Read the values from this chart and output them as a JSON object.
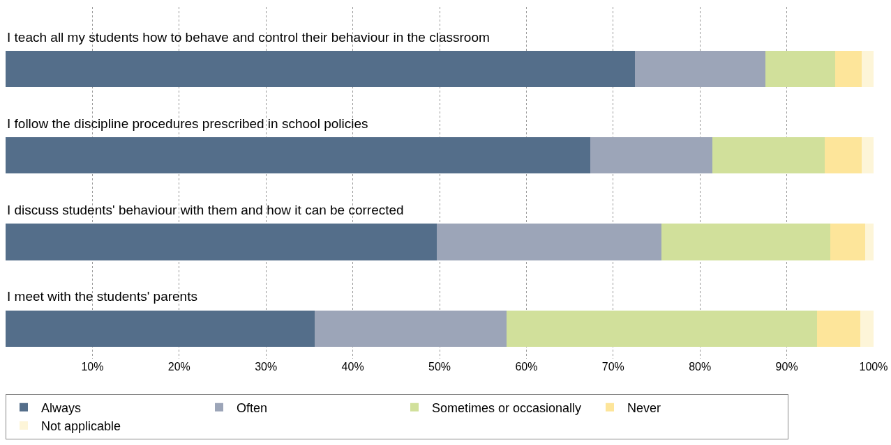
{
  "chart_data": {
    "type": "bar",
    "orientation": "horizontal",
    "stacked": true,
    "categories": [
      "I teach all my students how to behave and control their behaviour in the classroom",
      "I follow the discipline procedures prescribed in school policies",
      "I discuss students' behaviour with them and how it can be corrected",
      "I meet with the students' parents"
    ],
    "series": [
      {
        "name": "Always",
        "color": "#546e8a",
        "values": [
          72.5,
          67.4,
          49.7,
          35.6
        ]
      },
      {
        "name": "Often",
        "color": "#9ca5b8",
        "values": [
          15,
          14,
          25.9,
          22.1
        ]
      },
      {
        "name": "Sometimes or occasionally",
        "color": "#d1e09b",
        "values": [
          8.1,
          13,
          19.4,
          35.8
        ]
      },
      {
        "name": "Never",
        "color": "#fde59a",
        "values": [
          3,
          4.2,
          4,
          5
        ]
      },
      {
        "name": "Not applicable",
        "color": "#fdf5d8",
        "values": [
          1.4,
          1.4,
          1,
          1.5
        ]
      }
    ],
    "xlim": [
      0,
      100
    ],
    "xticks": [
      {
        "value": 10,
        "label": "10%"
      },
      {
        "value": 20,
        "label": "20%"
      },
      {
        "value": 30,
        "label": "30%"
      },
      {
        "value": 40,
        "label": "40%"
      },
      {
        "value": 50,
        "label": "50%"
      },
      {
        "value": 60,
        "label": "60%"
      },
      {
        "value": 70,
        "label": "70%"
      },
      {
        "value": 80,
        "label": "80%"
      },
      {
        "value": 90,
        "label": "90%"
      },
      {
        "value": 100,
        "label": "100%"
      }
    ],
    "grid": "x",
    "legend": "bottom"
  }
}
